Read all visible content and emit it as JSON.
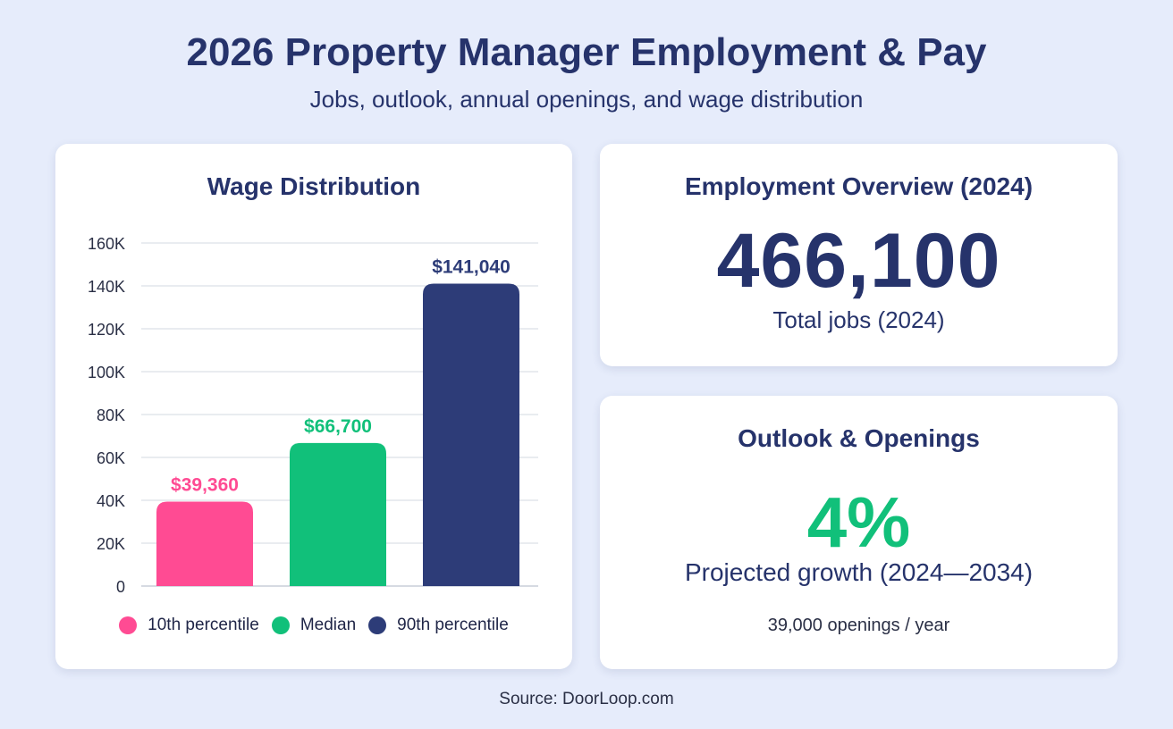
{
  "header": {
    "title": "2026 Property Manager Employment & Pay",
    "subtitle": "Jobs, outlook, annual openings, and wage distribution"
  },
  "chart_data": {
    "type": "bar",
    "title": "Wage Distribution",
    "categories": [
      "10th percentile",
      "Median",
      "90th percentile"
    ],
    "values": [
      39360,
      66700,
      141040
    ],
    "value_labels": [
      "$39,360",
      "$66,700",
      "$141,040"
    ],
    "colors": [
      "#ff4b93",
      "#11c07a",
      "#2d3c78"
    ],
    "ylim": [
      0,
      160000
    ],
    "yticks": [
      0,
      20000,
      40000,
      60000,
      80000,
      100000,
      120000,
      140000,
      160000
    ],
    "ytick_labels": [
      "0",
      "20K",
      "40K",
      "60K",
      "80K",
      "100K",
      "120K",
      "140K",
      "160K"
    ],
    "grid": true,
    "legend": "bottom"
  },
  "employment": {
    "title": "Employment Overview (2024)",
    "value": "466,100",
    "label": "Total jobs (2024)"
  },
  "outlook": {
    "title": "Outlook & Openings",
    "growth": "4%",
    "growth_label": "Projected growth (2024—2034)",
    "openings": "39,000 openings / year"
  },
  "footer": {
    "source": "Source: DoorLoop.com"
  },
  "colors": {
    "background": "#e6ecfb",
    "navy": "#26336b",
    "pink": "#ff4b93",
    "green": "#11c07a",
    "dark_blue": "#2d3c78"
  }
}
